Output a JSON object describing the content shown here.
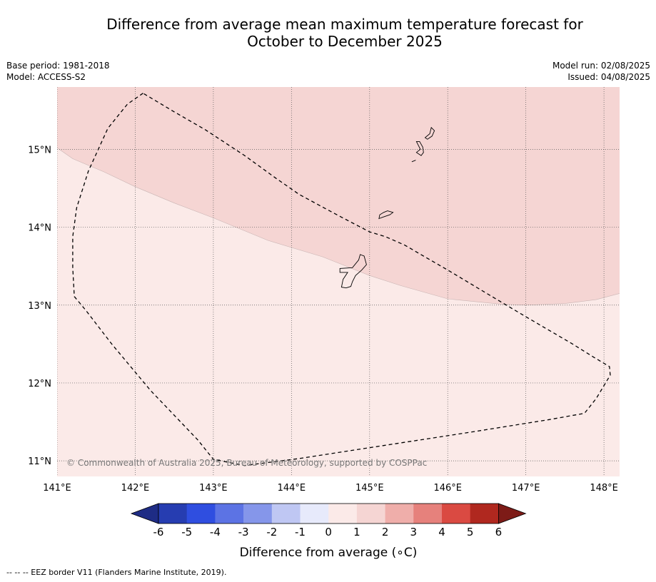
{
  "title_line1": "Difference from average mean maximum temperature forecast for",
  "title_line2": "October to December 2025",
  "base_period": "Base period: 1981-2018",
  "model": "Model: ACCESS-S2",
  "model_run": "Model run: 02/08/2025",
  "issued": "Issued: 04/08/2025",
  "map": {
    "lon_range": [
      141.0,
      148.2
    ],
    "lat_range": [
      10.8,
      15.8
    ],
    "lon_ticks": [
      141,
      142,
      143,
      144,
      145,
      146,
      147,
      148
    ],
    "lon_labels": [
      "141°E",
      "142°E",
      "143°E",
      "144°E",
      "145°E",
      "146°E",
      "147°E",
      "148°E"
    ],
    "lat_ticks": [
      11,
      12,
      13,
      14,
      15
    ],
    "lat_labels": [
      "11°N",
      "12°N",
      "13°N",
      "14°N",
      "15°N"
    ],
    "gridlines": "dotted",
    "zones": [
      {
        "range": "0 to 1",
        "color": "#fbeae8"
      },
      {
        "range": "1 to 2",
        "color": "#f5d5d3"
      }
    ],
    "zone_boundary": [
      [
        141.0,
        15.02
      ],
      [
        141.2,
        14.88
      ],
      [
        141.6,
        14.71
      ],
      [
        142.0,
        14.52
      ],
      [
        142.5,
        14.31
      ],
      [
        143.0,
        14.12
      ],
      [
        143.7,
        13.83
      ],
      [
        144.4,
        13.62
      ],
      [
        145.0,
        13.38
      ],
      [
        145.4,
        13.25
      ],
      [
        146.0,
        13.08
      ],
      [
        146.7,
        13.01
      ],
      [
        147.0,
        13.0
      ],
      [
        147.5,
        13.02
      ],
      [
        147.9,
        13.07
      ],
      [
        148.2,
        13.15
      ]
    ],
    "eez_border": [
      [
        142.1,
        15.72
      ],
      [
        141.9,
        15.58
      ],
      [
        141.65,
        15.27
      ],
      [
        141.4,
        14.72
      ],
      [
        141.25,
        14.25
      ],
      [
        141.2,
        13.88
      ],
      [
        141.2,
        13.48
      ],
      [
        141.22,
        13.11
      ],
      [
        141.37,
        12.93
      ],
      [
        141.7,
        12.5
      ],
      [
        142.2,
        11.9
      ],
      [
        142.8,
        11.27
      ],
      [
        143.0,
        11.02
      ],
      [
        143.4,
        10.94
      ],
      [
        144.1,
        11.03
      ],
      [
        145.2,
        11.2
      ],
      [
        146.3,
        11.37
      ],
      [
        147.3,
        11.53
      ],
      [
        147.75,
        11.61
      ],
      [
        147.9,
        11.8
      ],
      [
        148.08,
        12.1
      ],
      [
        148.07,
        12.21
      ],
      [
        147.87,
        12.33
      ],
      [
        147.6,
        12.5
      ],
      [
        147.0,
        12.85
      ],
      [
        146.5,
        13.15
      ],
      [
        146.0,
        13.45
      ],
      [
        145.45,
        13.77
      ],
      [
        145.2,
        13.88
      ],
      [
        145.0,
        13.94
      ],
      [
        144.6,
        14.15
      ],
      [
        144.1,
        14.42
      ],
      [
        143.8,
        14.63
      ],
      [
        143.4,
        14.92
      ],
      [
        142.9,
        15.25
      ],
      [
        142.5,
        15.48
      ],
      [
        142.1,
        15.72
      ]
    ],
    "islands": [
      [
        [
          144.64,
          13.23
        ],
        [
          144.66,
          13.33
        ],
        [
          144.72,
          13.42
        ],
        [
          144.62,
          13.42
        ],
        [
          144.62,
          13.47
        ],
        [
          144.78,
          13.48
        ],
        [
          144.86,
          13.58
        ],
        [
          144.88,
          13.65
        ],
        [
          144.93,
          13.63
        ],
        [
          144.96,
          13.52
        ],
        [
          144.9,
          13.45
        ],
        [
          144.82,
          13.38
        ],
        [
          144.78,
          13.3
        ],
        [
          144.76,
          13.24
        ],
        [
          144.7,
          13.22
        ]
      ],
      [
        [
          145.12,
          14.11
        ],
        [
          145.17,
          14.13
        ],
        [
          145.26,
          14.16
        ],
        [
          145.3,
          14.19
        ],
        [
          145.23,
          14.21
        ],
        [
          145.18,
          14.19
        ],
        [
          145.13,
          14.16
        ]
      ],
      [
        [
          145.6,
          14.96
        ],
        [
          145.65,
          15.0
        ],
        [
          145.62,
          15.06
        ],
        [
          145.6,
          15.1
        ],
        [
          145.64,
          15.1
        ],
        [
          145.68,
          15.03
        ],
        [
          145.69,
          14.96
        ],
        [
          145.66,
          14.92
        ]
      ],
      [
        [
          145.71,
          15.15
        ],
        [
          145.77,
          15.2
        ],
        [
          145.79,
          15.28
        ],
        [
          145.83,
          15.24
        ],
        [
          145.8,
          15.17
        ],
        [
          145.74,
          15.13
        ]
      ],
      [
        [
          145.54,
          14.84
        ],
        [
          145.59,
          14.86
        ]
      ]
    ],
    "copyright": "© Commonwealth of Australia 2025, Bureau of Meteorology, supported by COSPPac"
  },
  "colorbar": {
    "colors": [
      "#1e2c85",
      "#263db1",
      "#2f4ee0",
      "#5c73e4",
      "#8596ea",
      "#bfc7f3",
      "#e7eafb",
      "#fbeae8",
      "#f5d5d3",
      "#efaeaa",
      "#e6817c",
      "#da4a42",
      "#b0281f",
      "#7d1b17"
    ],
    "labels": [
      "-6",
      "-5",
      "-4",
      "-3",
      "-2",
      "-1",
      "0",
      "1",
      "2",
      "3",
      "4",
      "5",
      "6"
    ],
    "title": "Difference from average (∘C)"
  },
  "footnote": "--  --  -- EEZ border V11 (Flanders Marine Institute, 2019)."
}
